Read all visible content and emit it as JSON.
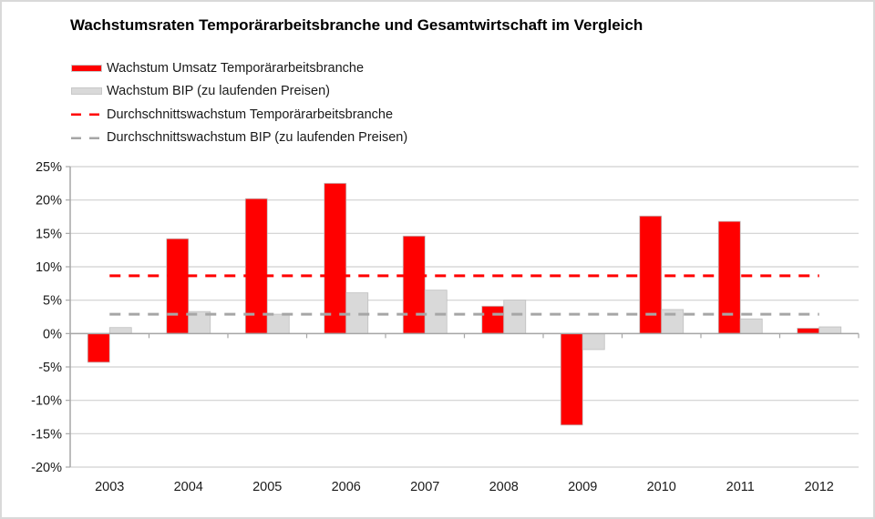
{
  "chart_data": {
    "type": "bar",
    "title": "Wachstumsraten Temporärarbeitsbranche und Gesamtwirtschaft im Vergleich",
    "xlabel": "",
    "ylabel": "",
    "categories": [
      "2003",
      "2004",
      "2005",
      "2006",
      "2007",
      "2008",
      "2009",
      "2010",
      "2011",
      "2012"
    ],
    "series": [
      {
        "name": "Wachstum Umsatz Temporärarbeitsbranche",
        "kind": "bar",
        "color": "#ff0000",
        "values": [
          -4.3,
          14.2,
          20.2,
          22.5,
          14.6,
          4.1,
          -13.7,
          17.6,
          16.8,
          0.8
        ]
      },
      {
        "name": "Wachstum BIP (zu laufenden Preisen)",
        "kind": "bar",
        "color": "#d9d9d9",
        "values": [
          0.9,
          3.3,
          2.9,
          6.1,
          6.5,
          5.0,
          -2.4,
          3.6,
          2.2,
          1.0
        ]
      },
      {
        "name": "Durchschnittswachstum Temporärarbeitsbranche",
        "kind": "dashed-line",
        "color": "#ff0000",
        "value": 8.65
      },
      {
        "name": "Durchschnittswachstum BIP (zu laufenden Preisen)",
        "kind": "dashed-line",
        "color": "#a6a6a6",
        "value": 2.9
      }
    ],
    "ylim": [
      -20,
      25
    ],
    "yticks": [
      25,
      20,
      15,
      10,
      5,
      0,
      -5,
      -10,
      -15,
      -20
    ],
    "ytick_labels": [
      "25%",
      "20%",
      "15%",
      "10%",
      "5%",
      "0%",
      "-5%",
      "-10%",
      "-15%",
      "-20%"
    ],
    "grid": true,
    "legend_position": "top-left"
  },
  "legend": [
    {
      "label": "Wachstum Umsatz Temporärarbeitsbranche"
    },
    {
      "label": "Wachstum BIP (zu laufenden Preisen)"
    },
    {
      "label": "Durchschnittswachstum Temporärarbeitsbranche"
    },
    {
      "label": "Durchschnittswachstum BIP (zu laufenden Preisen)"
    }
  ]
}
